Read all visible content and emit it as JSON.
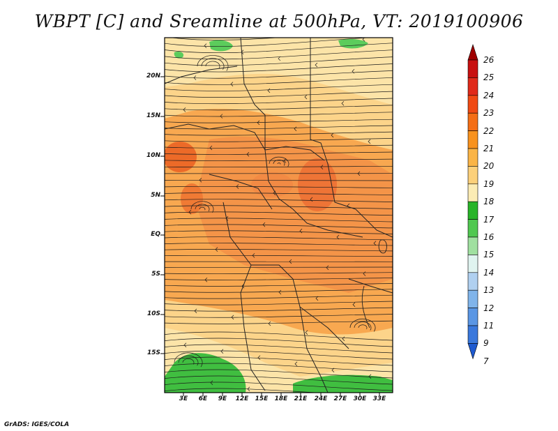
{
  "title": "WBPT [C] and Sreamline at 500hPa, VT: 2019100906",
  "footer": "GrADS: IGES/COLA",
  "map": {
    "lon_labels": [
      "3E",
      "6E",
      "9E",
      "12E",
      "15E",
      "18E",
      "21E",
      "24E",
      "27E",
      "30E",
      "33E"
    ],
    "lat_labels": [
      "20N",
      "15N",
      "10N",
      "5N",
      "EQ",
      "5S",
      "10S",
      "15S"
    ]
  },
  "colorbar": {
    "labels": [
      "26",
      "25",
      "24",
      "23",
      "22",
      "21",
      "20",
      "19",
      "18",
      "17",
      "16",
      "15",
      "14",
      "13",
      "12",
      "11",
      "9",
      "7"
    ],
    "colors": [
      "#a00000",
      "#c81010",
      "#e02a1a",
      "#f04a14",
      "#f46e16",
      "#f8921e",
      "#fab446",
      "#fcd07a",
      "#fcecb4",
      "#28b428",
      "#50c850",
      "#a0e0a0",
      "#e0f4f0",
      "#b0d0f0",
      "#80b4ea",
      "#5a96e4",
      "#3a78dc",
      "#1e5ad0"
    ]
  }
}
